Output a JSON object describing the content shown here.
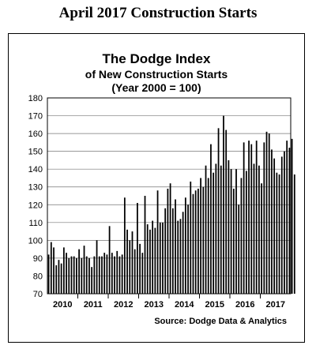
{
  "page": {
    "title": "April 2017 Construction Starts"
  },
  "chart_data": {
    "type": "bar",
    "title": "The Dodge Index",
    "subtitle_1": "of New Construction Starts",
    "subtitle_2": "(Year 2000 = 100)",
    "source": "Source:  Dodge Data & Analytics",
    "ylim": [
      70,
      180
    ],
    "yticks": [
      "70",
      "80",
      "90",
      "100",
      "110",
      "120",
      "130",
      "140",
      "150",
      "160",
      "170",
      "180"
    ],
    "ytick_values": [
      70,
      80,
      90,
      100,
      110,
      120,
      130,
      140,
      150,
      160,
      170,
      180
    ],
    "grid": true,
    "bar_color": "#000000",
    "years": [
      "2010",
      "2011",
      "2012",
      "2013",
      "2014",
      "2015",
      "2016",
      "2017"
    ],
    "start": "January 2010",
    "end": "April 2017",
    "values": [
      92,
      99,
      96,
      86,
      89,
      87,
      96,
      93,
      90,
      91,
      91,
      90,
      95,
      90,
      97,
      91,
      90,
      85,
      91,
      100,
      91,
      91,
      93,
      92,
      108,
      93,
      91,
      94,
      91,
      92,
      124,
      106,
      100,
      105,
      95,
      121,
      98,
      93,
      125,
      109,
      106,
      111,
      107,
      128,
      110,
      110,
      118,
      129,
      132,
      118,
      123,
      111,
      112,
      116,
      124,
      120,
      133,
      126,
      128,
      129,
      135,
      130,
      142,
      135,
      154,
      138,
      143,
      163,
      142,
      170,
      162,
      145,
      140,
      129,
      140,
      120,
      135,
      155,
      139,
      156,
      154,
      143,
      156,
      142,
      132,
      155,
      161,
      160,
      151,
      146,
      138,
      137,
      147,
      150,
      156,
      152,
      157,
      137
    ]
  }
}
